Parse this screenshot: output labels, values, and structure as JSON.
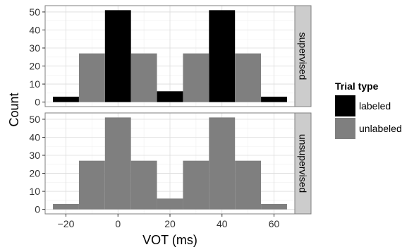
{
  "chart_data": {
    "type": "bar",
    "subtype": "faceted-histogram",
    "xlabel": "VOT (ms)",
    "ylabel": "Count",
    "xlim": [
      -28,
      68
    ],
    "ylim": [
      -2.5,
      53.5
    ],
    "xticks": [
      -20,
      0,
      20,
      40,
      60
    ],
    "yticks": [
      0,
      10,
      20,
      30,
      40,
      50
    ],
    "bin_width": 10,
    "grid": true,
    "legend": {
      "title": "Trial type",
      "position": "right",
      "entries": [
        {
          "label": "labeled",
          "color": "#000000"
        },
        {
          "label": "unlabeled",
          "color": "#7f7f7f"
        }
      ]
    },
    "panels": [
      {
        "label": "supervised",
        "series": [
          {
            "name": "labeled",
            "bars": [
              {
                "x": -20,
                "y": 3
              },
              {
                "x": 0,
                "y": 51
              },
              {
                "x": 20,
                "y": 6
              },
              {
                "x": 40,
                "y": 51
              },
              {
                "x": 60,
                "y": 3
              }
            ]
          },
          {
            "name": "unlabeled",
            "bars": [
              {
                "x": -10,
                "y": 27
              },
              {
                "x": 10,
                "y": 27
              },
              {
                "x": 30,
                "y": 27
              },
              {
                "x": 50,
                "y": 27
              }
            ]
          }
        ]
      },
      {
        "label": "unsupervised",
        "series": [
          {
            "name": "unlabeled",
            "bars": [
              {
                "x": -20,
                "y": 3
              },
              {
                "x": -10,
                "y": 27
              },
              {
                "x": 0,
                "y": 51
              },
              {
                "x": 10,
                "y": 27
              },
              {
                "x": 20,
                "y": 6
              },
              {
                "x": 30,
                "y": 27
              },
              {
                "x": 40,
                "y": 51
              },
              {
                "x": 50,
                "y": 27
              },
              {
                "x": 60,
                "y": 3
              }
            ]
          }
        ]
      }
    ],
    "colors": {
      "panel_background": "#ffffff",
      "panel_border": "#7f7f7f",
      "grid_major": "#dcdcdc",
      "grid_minor": "#f0f0f0",
      "strip_background": "#cccccc"
    }
  }
}
